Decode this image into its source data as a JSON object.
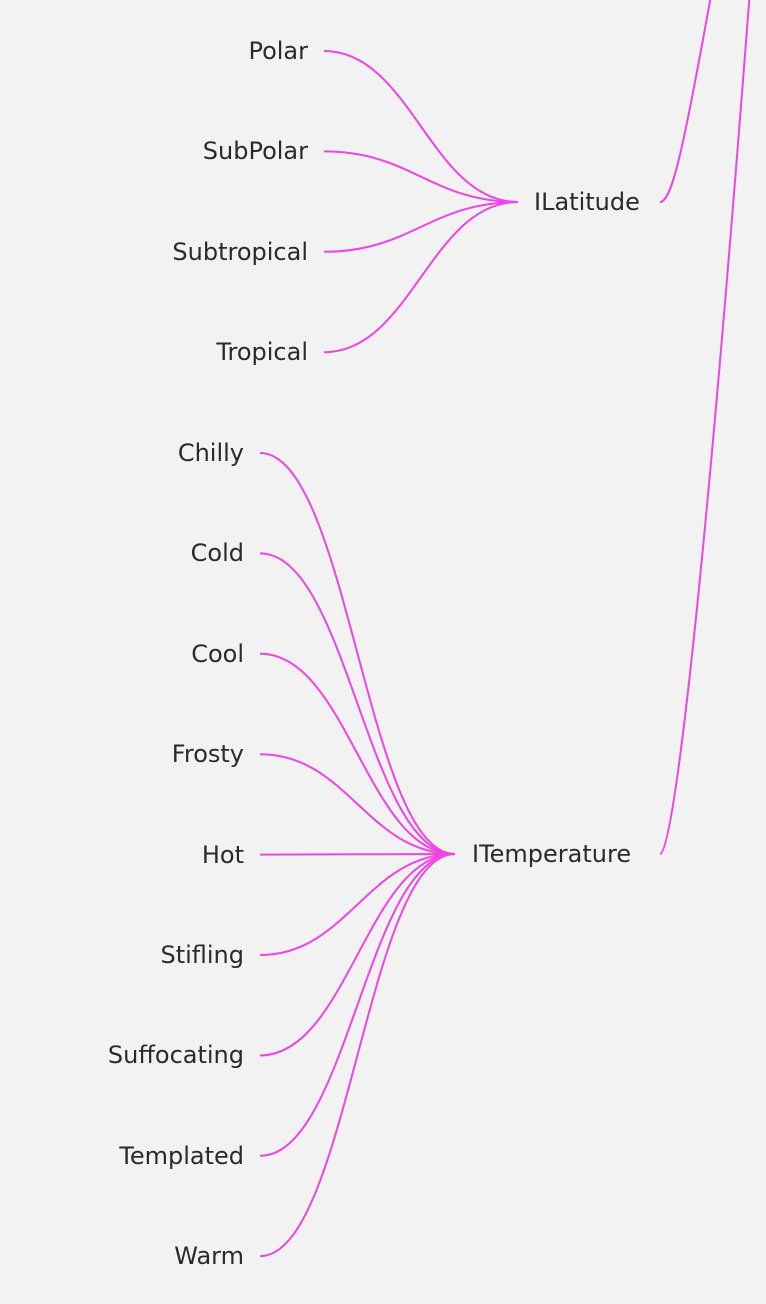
{
  "diagram": {
    "edge_color": "#f044e4",
    "background": "#f2f2f2",
    "groups": [
      {
        "id": "latitude",
        "label": "ILatitude",
        "children": [
          "Polar",
          "SubPolar",
          "Subtropical",
          "Tropical"
        ]
      },
      {
        "id": "temperature",
        "label": "ITemperature",
        "children": [
          "Chilly",
          "Cold",
          "Cool",
          "Frosty",
          "Hot",
          "Stifling",
          "Suffocating",
          "Templated",
          "Warm"
        ]
      }
    ]
  }
}
